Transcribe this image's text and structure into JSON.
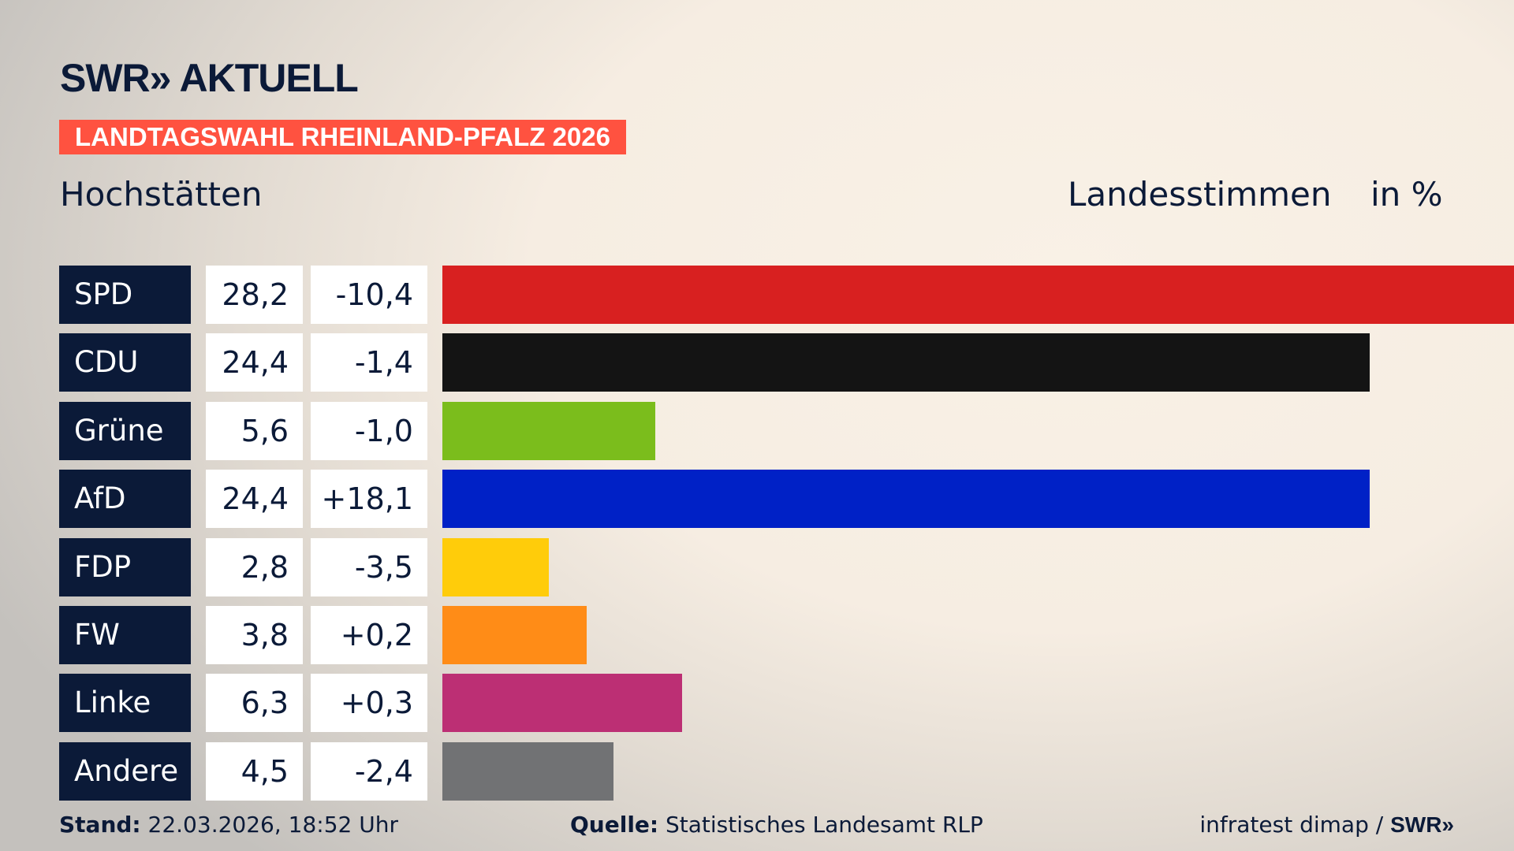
{
  "header": {
    "logo": "SWR» AKTUELL",
    "banner": "LANDTAGSWAHL RHEINLAND-PFALZ 2026",
    "place": "Hochstätten",
    "measure": "Landesstimmen",
    "unit": "in %"
  },
  "chart_data": {
    "type": "bar",
    "orientation": "horizontal",
    "categories": [
      "SPD",
      "CDU",
      "Grüne",
      "AfD",
      "FDP",
      "FW",
      "Linke",
      "Andere"
    ],
    "values": [
      28.2,
      24.4,
      5.6,
      24.4,
      2.8,
      3.8,
      6.3,
      4.5
    ],
    "value_labels": [
      "28,2",
      "24,4",
      "5,6",
      "24,4",
      "2,8",
      "3,8",
      "6,3",
      "4,5"
    ],
    "diff_labels": [
      "-10,4",
      "-1,4",
      "-1,0",
      "+18,1",
      "-3,5",
      "+0,2",
      "+0,3",
      "-2,4"
    ],
    "diffs": [
      -10.4,
      -1.4,
      -1.0,
      18.1,
      -3.5,
      0.2,
      0.3,
      -2.4
    ],
    "colors": [
      "#d82020",
      "#141414",
      "#7bbd1c",
      "#0021c6",
      "#ffcc0a",
      "#ff8c17",
      "#bc2f74",
      "#717274"
    ],
    "xlim": [
      0,
      28.2
    ],
    "grid": false
  },
  "footer": {
    "stand_label": "Stand:",
    "stand_value": "22.03.2026, 18:52 Uhr",
    "source_label": "Quelle:",
    "source_value": "Statistisches Landesamt RLP",
    "credit": "infratest dimap / ",
    "credit_logo": "SWR»"
  }
}
